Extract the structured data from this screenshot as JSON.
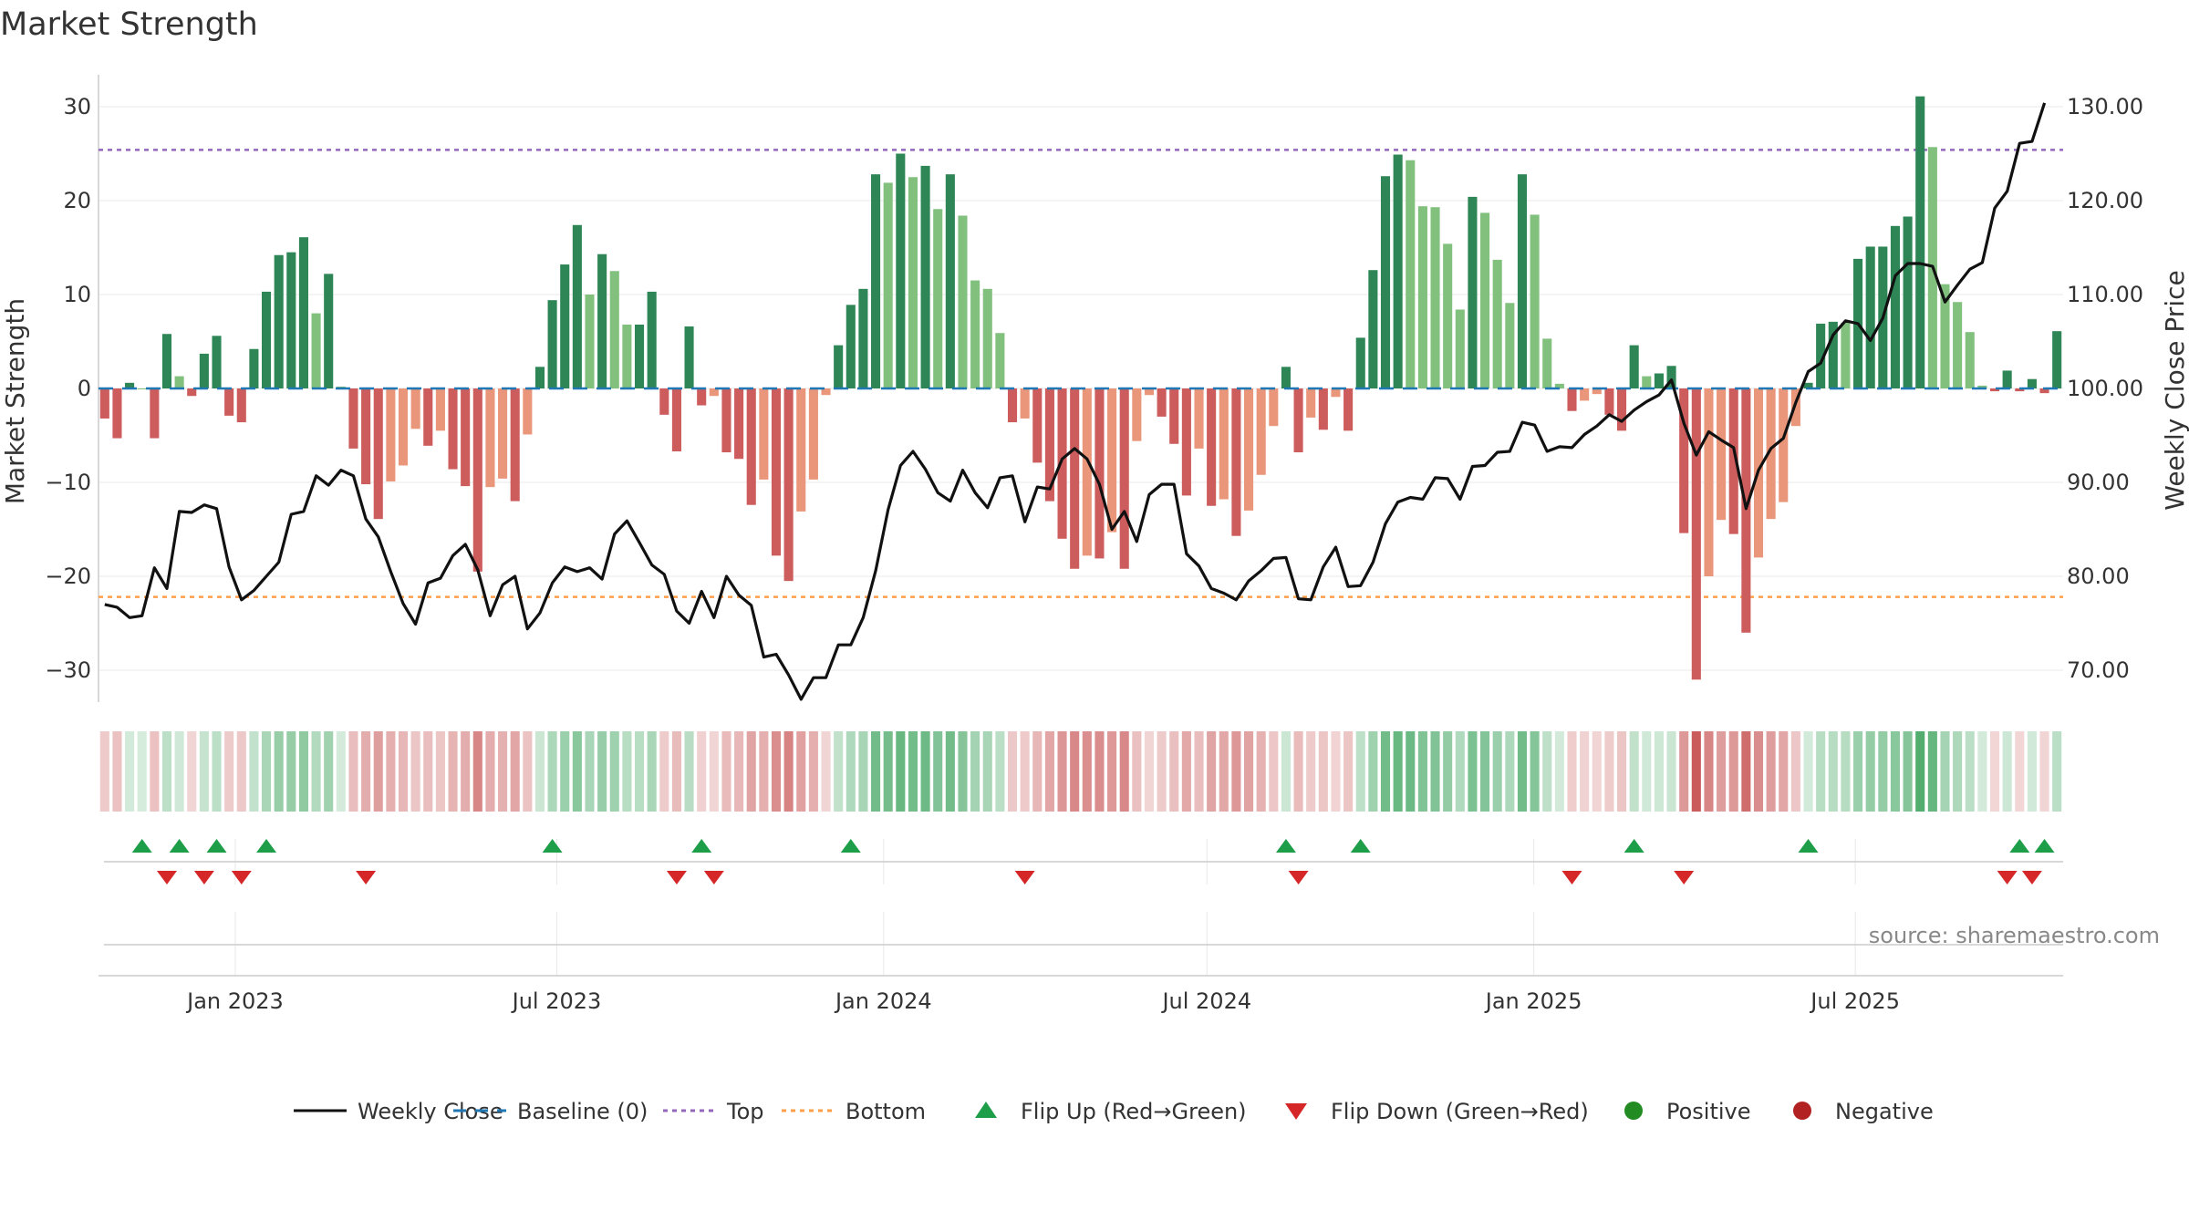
{
  "chart_data": {
    "type": "bar",
    "title": "Market Strength",
    "ylabel": "Market Strength",
    "y2label": "Weekly Close Price",
    "source": "source: sharemaestro.com",
    "ylim": [
      -33,
      33
    ],
    "y2lim": [
      65,
      134.4
    ],
    "yticks": [
      "30",
      "20",
      "10",
      "0",
      "−10",
      "−20",
      "−30"
    ],
    "ytick_values": [
      30,
      20,
      10,
      0,
      -10,
      -20,
      -30
    ],
    "y2ticks": [
      "130.00",
      "120.00",
      "110.00",
      "100.00",
      "90.00",
      "80.00",
      "70.00"
    ],
    "y2tick_values": [
      130,
      120,
      110,
      100,
      90,
      80,
      70
    ],
    "top_line": 25.4,
    "bottom_line": -22.2,
    "x_start": "2022-10-16",
    "x_ticks": [
      "Jan 2023",
      "Jul 2023",
      "Jan 2024",
      "Jul 2024",
      "Jan 2025",
      "Jul 2025"
    ],
    "x_tick_dates": [
      "2023-01-01",
      "2023-07-01",
      "2024-01-01",
      "2024-07-01",
      "2025-01-01",
      "2025-07-01"
    ],
    "grid": true,
    "legend_placement": "bottom",
    "colors": {
      "pos_strong": "#2e8555",
      "pos_weak": "#82c07e",
      "neg_strong": "#cd5c5c",
      "neg_weak": "#e9967a",
      "close": "#111111",
      "baseline": "#1f77b4",
      "top": "#9467bd",
      "bottom": "#ff9f4a",
      "flip_up": "#1f9e4a",
      "flip_down": "#d62728",
      "positive": "#228b22",
      "negative": "#b22222"
    },
    "strength": [
      -3.2,
      -5.3,
      0.6,
      0,
      -5.3,
      5.8,
      1.3,
      -0.8,
      3.7,
      5.6,
      -2.9,
      -3.6,
      4.2,
      10.3,
      14.2,
      14.5,
      16.1,
      8.0,
      12.2,
      0.2,
      -6.4,
      -10.2,
      -13.9,
      -9.9,
      -8.2,
      -4.3,
      -6.1,
      -4.5,
      -8.6,
      -10.4,
      -19.5,
      -10.5,
      -9.6,
      -12.0,
      -4.9,
      2.3,
      9.4,
      13.2,
      17.4,
      10.0,
      14.3,
      12.5,
      6.8,
      6.8,
      10.3,
      -2.8,
      -6.7,
      6.6,
      -1.8,
      -0.8,
      -6.8,
      -7.5,
      -12.4,
      -9.7,
      -17.8,
      -20.5,
      -13.1,
      -9.7,
      -0.7,
      4.6,
      8.9,
      10.6,
      22.8,
      21.9,
      25.0,
      22.5,
      23.7,
      19.1,
      22.8,
      18.4,
      11.5,
      10.6,
      5.9,
      -3.6,
      -3.2,
      -7.9,
      -12.0,
      -16.0,
      -19.2,
      -17.8,
      -18.1,
      -15.3,
      -19.2,
      -5.6,
      -0.7,
      -3.0,
      -5.9,
      -11.4,
      -6.4,
      -12.5,
      -11.8,
      -15.7,
      -13.0,
      -9.2,
      -4.0,
      2.3,
      -6.8,
      -3.1,
      -4.4,
      -0.9,
      -4.5,
      5.4,
      12.6,
      22.6,
      24.9,
      24.3,
      19.4,
      19.3,
      15.4,
      8.4,
      20.4,
      18.7,
      13.7,
      9.1,
      22.8,
      18.5,
      5.3,
      0.5,
      -2.4,
      -1.3,
      -0.6,
      -2.8,
      -4.5,
      4.6,
      1.3,
      1.6,
      2.4,
      -15.4,
      -31.0,
      -20.0,
      -14.0,
      -15.5,
      -26.0,
      -18.0,
      -13.9,
      -12.1,
      -4.0,
      0.6,
      6.9,
      7.1,
      7.0,
      13.8,
      15.1,
      15.1,
      17.3,
      18.3,
      31.1,
      25.7,
      11.1,
      9.2,
      6.0,
      0.3,
      -0.3,
      1.9,
      -0.3,
      1.0,
      -0.5,
      6.1
    ],
    "close": [
      77.0,
      76.7,
      75.6,
      75.8,
      80.9,
      78.7,
      86.9,
      86.8,
      87.6,
      87.2,
      81.0,
      77.5,
      78.5,
      80.0,
      81.5,
      86.6,
      86.9,
      90.7,
      89.7,
      91.3,
      90.7,
      86.1,
      84.2,
      80.5,
      77.1,
      74.9,
      79.3,
      79.8,
      82.2,
      83.4,
      80.7,
      75.8,
      79.1,
      80.0,
      74.4,
      76.1,
      79.3,
      81.0,
      80.5,
      80.9,
      79.7,
      84.5,
      85.9,
      83.6,
      81.2,
      80.2,
      76.3,
      75.0,
      78.4,
      75.6,
      80.0,
      78.0,
      76.9,
      71.4,
      71.7,
      69.5,
      66.9,
      69.2,
      69.2,
      72.7,
      72.7,
      75.6,
      80.6,
      87.1,
      91.8,
      93.3,
      91.4,
      88.9,
      88.0,
      91.3,
      88.9,
      87.3,
      90.5,
      90.7,
      85.8,
      89.5,
      89.3,
      92.5,
      93.6,
      92.5,
      89.8,
      85.0,
      86.9,
      83.7,
      88.7,
      89.8,
      89.8,
      82.4,
      81.1,
      78.7,
      78.2,
      77.5,
      79.5,
      80.6,
      81.9,
      82.0,
      77.6,
      77.5,
      81.0,
      83.1,
      78.9,
      79.0,
      81.5,
      85.6,
      87.9,
      88.4,
      88.2,
      90.5,
      90.4,
      88.2,
      91.7,
      91.8,
      93.2,
      93.3,
      96.4,
      96.1,
      93.3,
      93.8,
      93.7,
      95.1,
      96.0,
      97.2,
      96.5,
      97.7,
      98.6,
      99.3,
      100.9,
      96.3,
      92.9,
      95.4,
      94.5,
      93.7,
      87.2,
      91.3,
      93.6,
      94.7,
      98.5,
      101.8,
      102.7,
      105.7,
      107.2,
      106.9,
      105.1,
      107.5,
      112.0,
      113.3,
      113.3,
      113.0,
      109.2,
      111.0,
      112.7,
      113.4,
      119.2,
      121.0,
      126.1,
      126.3,
      130.4
    ],
    "regime_strips": {
      "rows": 1,
      "note": "color tint per week derived from strength"
    },
    "flip_up_weeks": [
      3,
      6,
      9,
      13,
      36,
      48,
      60,
      95,
      101,
      123,
      137,
      154,
      156
    ],
    "flip_down_weeks": [
      5,
      8,
      11,
      21,
      46,
      49,
      74,
      96,
      118,
      127,
      153,
      155
    ],
    "legend": [
      {
        "label": "Weekly Close",
        "kind": "solid-line",
        "color": "#111111"
      },
      {
        "label": "Baseline (0)",
        "kind": "dashed-line",
        "color": "#1f77b4"
      },
      {
        "label": "Top",
        "kind": "dotted-line",
        "color": "#9467bd"
      },
      {
        "label": "Bottom",
        "kind": "dotted-line",
        "color": "#ff9f4a"
      },
      {
        "label": "Flip Up (Red→Green)",
        "kind": "up-triangle",
        "color": "#1f9e4a"
      },
      {
        "label": "Flip Down (Green→Red)",
        "kind": "down-triangle",
        "color": "#d62728"
      },
      {
        "label": "Positive",
        "kind": "dot",
        "color": "#228b22"
      },
      {
        "label": "Negative",
        "kind": "dot",
        "color": "#b22222"
      }
    ]
  }
}
